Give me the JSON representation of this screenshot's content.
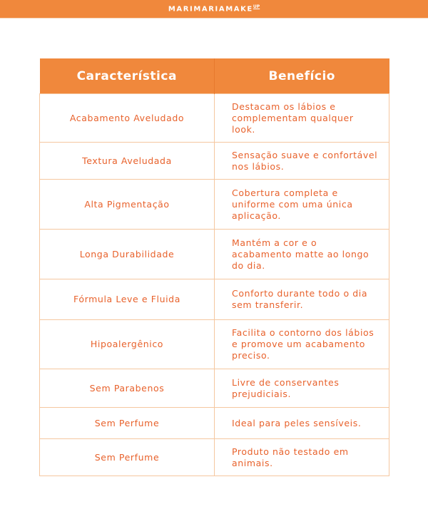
{
  "brand": {
    "name": "MARIMARIAMAKE",
    "suffix": "UP"
  },
  "colors": {
    "accent": "#f0883c",
    "text": "#e8622c",
    "border": "#f5c7a0"
  },
  "table": {
    "headers": [
      "Característica",
      "Benefício"
    ],
    "rows": [
      {
        "feature": "Acabamento Aveludado",
        "benefit": "Destacam os lábios e complementam qualquer look."
      },
      {
        "feature": "Textura Aveludada",
        "benefit": "Sensação suave e confortável nos lábios."
      },
      {
        "feature": "Alta Pigmentação",
        "benefit": "Cobertura completa e uniforme com uma única aplicação."
      },
      {
        "feature": "Longa Durabilidade",
        "benefit": "Mantém a cor e o acabamento matte ao longo do dia."
      },
      {
        "feature": "Fórmula Leve e Fluida",
        "benefit": "Conforto durante todo o dia sem transferir."
      },
      {
        "feature": "Hipoalergênico",
        "benefit": "Facilita o contorno dos lábios e promove um acabamento preciso."
      },
      {
        "feature": "Sem Parabenos",
        "benefit": "Livre de conservantes prejudiciais."
      },
      {
        "feature": "Sem Perfume",
        "benefit": "Ideal para peles sensíveis."
      },
      {
        "feature": "Sem Perfume",
        "benefit": "Produto não testado em animais."
      }
    ]
  }
}
